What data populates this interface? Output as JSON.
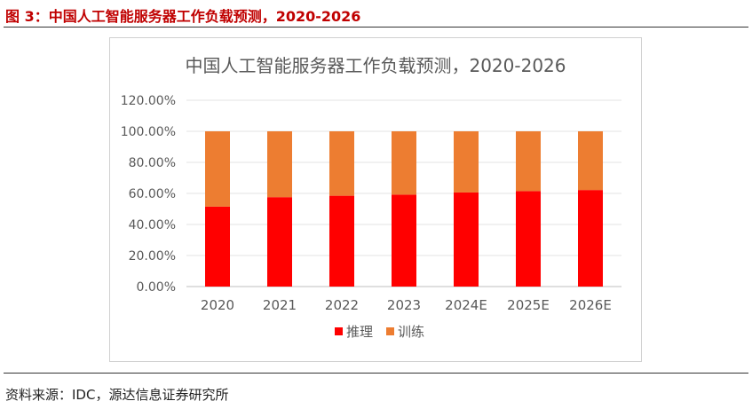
{
  "caption": "图 3：中国人工智能服务器工作负载预测，2020-2026",
  "source": "资料来源：IDC，源达信息证券研究所",
  "chart_data": {
    "type": "bar",
    "stacked": true,
    "title": "中国人工智能服务器工作负载预测，2020-2026",
    "categories": [
      "2020",
      "2021",
      "2022",
      "2023",
      "2024E",
      "2025E",
      "2026E"
    ],
    "series": [
      {
        "name": "推理",
        "color": "#ff0000",
        "values": [
          51.5,
          57.6,
          58.5,
          59.2,
          60.6,
          61.5,
          62.2
        ]
      },
      {
        "name": "训练",
        "color": "#ed7d31",
        "values": [
          48.5,
          42.4,
          41.5,
          40.8,
          39.4,
          38.5,
          37.8
        ]
      }
    ],
    "ylim": [
      0,
      120
    ],
    "yticks": [
      "0.00%",
      "20.00%",
      "40.00%",
      "60.00%",
      "80.00%",
      "100.00%",
      "120.00%"
    ],
    "grid": true,
    "legend": "bottom"
  }
}
